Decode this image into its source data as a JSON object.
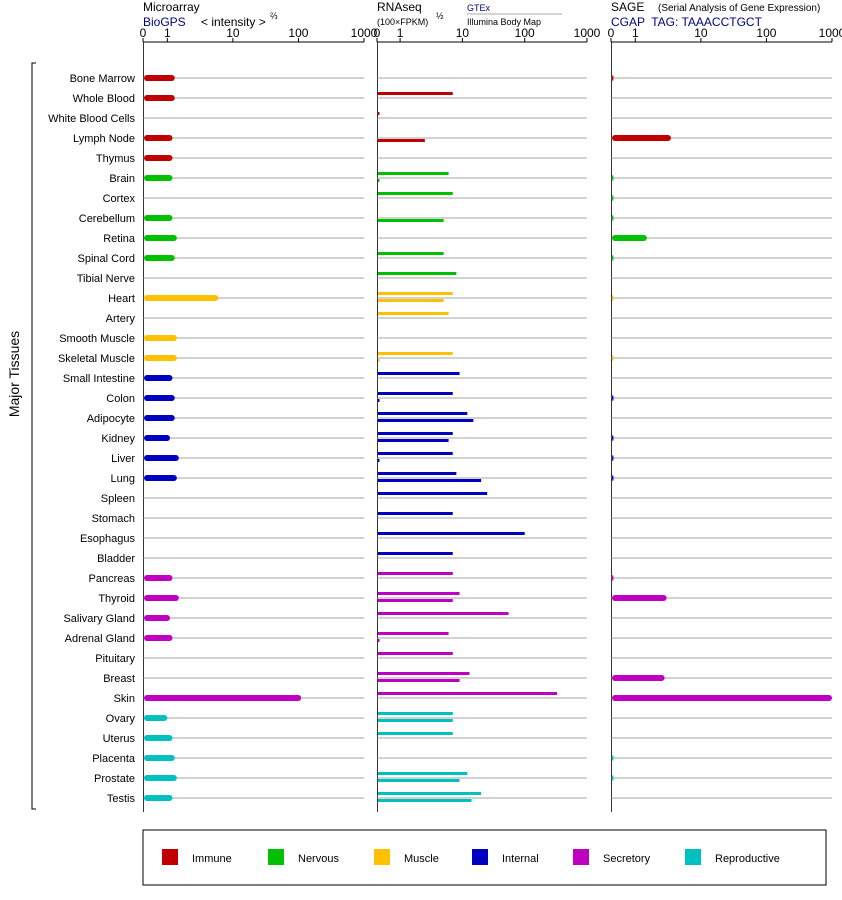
{
  "panels": {
    "microarray": {
      "title": "Microarray",
      "source": "BioGPS",
      "unit_text": "< intensity >",
      "unit_exp": "⅔",
      "ticks": [
        "0",
        "1",
        "10",
        "100",
        "1000"
      ]
    },
    "rnaseq": {
      "title": "RNAseq",
      "unit_text": "(100×FPKM)",
      "unit_exp": "½",
      "source_line1": "GTEx",
      "source_line2": "Illumina Body Map",
      "ticks": [
        "0",
        "1",
        "10",
        "100",
        "1000"
      ]
    },
    "sage": {
      "title": "SAGE",
      "subtitle": "(Serial Analysis of Gene Expression)",
      "source": "CGAP  TAG: TAAACCTGCT",
      "ticks": [
        "0",
        "1",
        "10",
        "100",
        "1000"
      ]
    }
  },
  "y_group_label": "Major Tissues",
  "legend": [
    {
      "label": "Immune",
      "color": "#c00000"
    },
    {
      "label": "Nervous",
      "color": "#00c000"
    },
    {
      "label": "Muscle",
      "color": "#ffc000"
    },
    {
      "label": "Internal",
      "color": "#0000c0"
    },
    {
      "label": "Secretory",
      "color": "#c000c0"
    },
    {
      "label": "Reproductive",
      "color": "#00c0c0"
    }
  ],
  "chart_data": {
    "type": "bar",
    "scale": "log-like (0, 1, 10, 100, 1000)",
    "categories": [
      "Bone Marrow",
      "Whole Blood",
      "White Blood Cells",
      "Lymph Node",
      "Thymus",
      "Brain",
      "Cortex",
      "Cerebellum",
      "Retina",
      "Spinal Cord",
      "Tibial Nerve",
      "Heart",
      "Artery",
      "Smooth Muscle",
      "Skeletal Muscle",
      "Small Intestine",
      "Colon",
      "Adipocyte",
      "Kidney",
      "Liver",
      "Lung",
      "Spleen",
      "Stomach",
      "Esophagus",
      "Bladder",
      "Pancreas",
      "Thyroid",
      "Salivary Gland",
      "Adrenal Gland",
      "Pituitary",
      "Breast",
      "Skin",
      "Ovary",
      "Uterus",
      "Placenta",
      "Prostate",
      "Testis"
    ],
    "tissue_system": [
      "Immune",
      "Immune",
      "Immune",
      "Immune",
      "Immune",
      "Nervous",
      "Nervous",
      "Nervous",
      "Nervous",
      "Nervous",
      "Nervous",
      "Muscle",
      "Muscle",
      "Muscle",
      "Muscle",
      "Internal",
      "Internal",
      "Internal",
      "Internal",
      "Internal",
      "Internal",
      "Internal",
      "Internal",
      "Internal",
      "Internal",
      "Secretory",
      "Secretory",
      "Secretory",
      "Secretory",
      "Secretory",
      "Secretory",
      "Secretory",
      "Reproductive",
      "Reproductive",
      "Reproductive",
      "Reproductive",
      "Reproductive"
    ],
    "microarray": [
      1.3,
      1.3,
      null,
      1.2,
      1.2,
      1.2,
      null,
      1.2,
      1.4,
      1.3,
      null,
      6,
      null,
      1.4,
      1.4,
      1.2,
      1.3,
      1.3,
      1.1,
      1.5,
      1.4,
      null,
      null,
      null,
      null,
      1.2,
      1.5,
      1.1,
      1.2,
      null,
      null,
      110,
      1.0,
      1.2,
      1.3,
      1.4,
      1.2
    ],
    "rnaseq_gtex": [
      null,
      7,
      0.05,
      null,
      null,
      6,
      7,
      null,
      null,
      5,
      8,
      7,
      6,
      null,
      7,
      9,
      7,
      12,
      7,
      7,
      8,
      25,
      7,
      100,
      7,
      7,
      9,
      55,
      6,
      7,
      13,
      330,
      7,
      7,
      null,
      12,
      20
    ],
    "rnaseq_bodymap": [
      null,
      null,
      null,
      2.5,
      null,
      0.1,
      null,
      5,
      null,
      null,
      null,
      5,
      null,
      null,
      0.1,
      null,
      0.1,
      15,
      6,
      0.1,
      20,
      null,
      null,
      null,
      null,
      null,
      7,
      null,
      0.1,
      null,
      9,
      null,
      7,
      null,
      null,
      9,
      14
    ],
    "sage": [
      0.1,
      null,
      null,
      3.5,
      null,
      0.1,
      0.1,
      0.1,
      1.5,
      0.1,
      null,
      0.03,
      null,
      null,
      0.03,
      null,
      0.1,
      null,
      0.1,
      0.1,
      0.1,
      null,
      null,
      null,
      null,
      0.1,
      3,
      null,
      null,
      null,
      2.8,
      1000,
      null,
      null,
      0.1,
      0.1,
      null
    ],
    "xlim": [
      0,
      1000
    ]
  }
}
